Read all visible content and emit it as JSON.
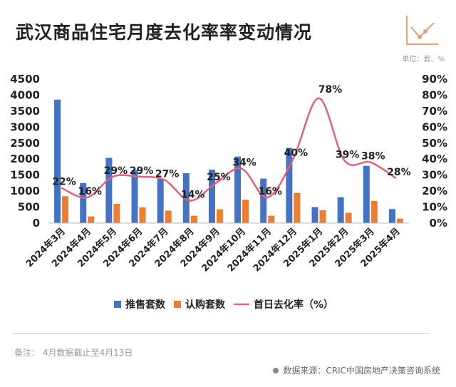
{
  "title": "武汉商品住宅月度去化率率变动情况",
  "unit": "单位：套、%",
  "note": "备注：  4月数据截止至4月13日",
  "source": "数据来源：CRIC中国房地产决策咨询系统",
  "colors": {
    "supply": "#4472c4",
    "subscribe": "#ed7d31",
    "rate": "#e06377",
    "axis": "#222222",
    "corner_icon": "#e4a07a"
  },
  "icons": {
    "corner": "line-chart-icon",
    "source_bullet": "dot-icon"
  },
  "chart_data": {
    "type": "bar",
    "title": "武汉商品住宅月度去化率率变动情况",
    "categories": [
      "2024年3月",
      "2024年4月",
      "2024年5月",
      "2024年6月",
      "2024年7月",
      "2024年8月",
      "2024年9月",
      "2024年10月",
      "2024年11月",
      "2024年12月",
      "2025年1月",
      "2025年2月",
      "2025年3月",
      "2025年4月"
    ],
    "series": [
      {
        "name": "推售套数",
        "type": "bar",
        "axis": "left",
        "values": [
          3860,
          1250,
          2040,
          1660,
          1380,
          1560,
          1670,
          2080,
          1390,
          2350,
          500,
          810,
          1790,
          440
        ]
      },
      {
        "name": "认购套数",
        "type": "bar",
        "axis": "left",
        "values": [
          840,
          210,
          600,
          490,
          390,
          230,
          430,
          730,
          230,
          940,
          400,
          320,
          690,
          140
        ]
      },
      {
        "name": "首日去化率（%）",
        "type": "line",
        "axis": "right",
        "values": [
          22,
          16,
          29,
          29,
          27,
          14,
          25,
          34,
          16,
          40,
          78,
          39,
          38,
          28
        ]
      }
    ],
    "data_labels": [
      "22%",
      "16%",
      "29%",
      "29%",
      "27%",
      "14%",
      "25%",
      "34%",
      "16%",
      "40%",
      "78%",
      "39%",
      "38%",
      "28%"
    ],
    "y_left": {
      "min": 0,
      "max": 4500,
      "step": 500,
      "ticks": [
        "0",
        "500",
        "1000",
        "1500",
        "2000",
        "2500",
        "3000",
        "3500",
        "4000",
        "4500"
      ]
    },
    "y_right": {
      "min": 0,
      "max": 90,
      "step": 10,
      "ticks": [
        "0%",
        "10%",
        "20%",
        "30%",
        "40%",
        "50%",
        "60%",
        "70%",
        "80%",
        "90%"
      ]
    },
    "grid": false,
    "legend": "bottom"
  }
}
